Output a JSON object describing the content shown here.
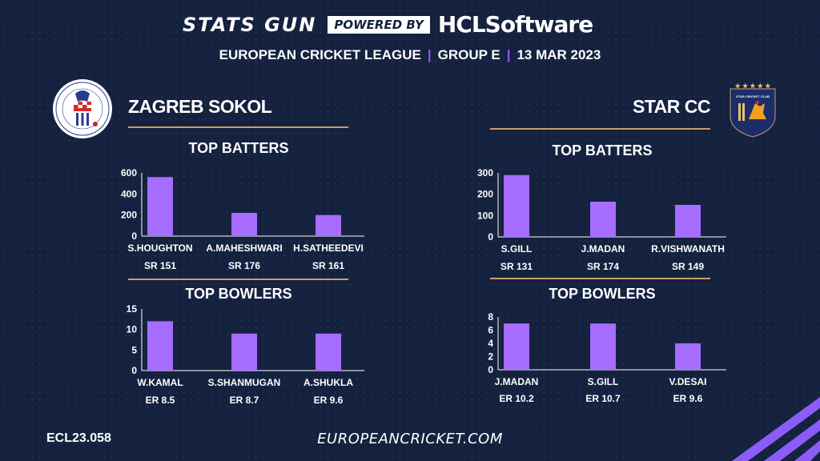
{
  "header": {
    "stats_gun": "STATS GUN",
    "powered_by": "POWERED BY",
    "sponsor_prefix": "HCL",
    "sponsor_suffix": "Software",
    "league": "EUROPEAN CRICKET LEAGUE",
    "group": "GROUP  E",
    "date": "13 MAR 2023"
  },
  "teams": {
    "left": {
      "name": "ZAGREB SOKOL"
    },
    "right": {
      "name": "STAR CC"
    }
  },
  "sections": {
    "batters": "TOP BATTERS",
    "bowlers": "TOP BOWLERS"
  },
  "footer": {
    "code": "ECL23.058",
    "url": "EUROPEANCRICKET.COM"
  },
  "colors": {
    "background": "#14213f",
    "bar": "#a66dff",
    "gold": "#c9a062",
    "accent": "#8b5cf6"
  },
  "chart_data": [
    {
      "id": "left-batters",
      "type": "bar",
      "title": "TOP BATTERS",
      "categories": [
        "S.HOUGHTON",
        "A.MAHESHWARI",
        "H.SATHEEDEVI"
      ],
      "values": [
        560,
        220,
        200
      ],
      "sublabels": [
        "SR 151",
        "SR 176",
        "SR 161"
      ],
      "yticks": [
        0,
        200,
        400,
        600
      ],
      "ylim": [
        0,
        600
      ],
      "grid": false
    },
    {
      "id": "left-bowlers",
      "type": "bar",
      "title": "TOP BOWLERS",
      "categories": [
        "W.KAMAL",
        "S.SHANMUGAN",
        "A.SHUKLA"
      ],
      "values": [
        12,
        9,
        9
      ],
      "sublabels": [
        "ER 8.5",
        "ER 8.7",
        "ER 9.6"
      ],
      "yticks": [
        0,
        5,
        10,
        15
      ],
      "ylim": [
        0,
        15
      ],
      "grid": false
    },
    {
      "id": "right-batters",
      "type": "bar",
      "title": "TOP BATTERS",
      "categories": [
        "S.GILL",
        "J.MADAN",
        "R.VISHWANATH"
      ],
      "values": [
        290,
        165,
        150
      ],
      "sublabels": [
        "SR 131",
        "SR 174",
        "SR 149"
      ],
      "yticks": [
        0,
        100,
        200,
        300
      ],
      "ylim": [
        0,
        300
      ],
      "grid": false
    },
    {
      "id": "right-bowlers",
      "type": "bar",
      "title": "TOP BOWLERS",
      "categories": [
        "J.MADAN",
        "S.GILL",
        "V.DESAI"
      ],
      "values": [
        7,
        7,
        4
      ],
      "sublabels": [
        "ER 10.2",
        "ER 10.7",
        "ER 9.6"
      ],
      "yticks": [
        0,
        2,
        4,
        6,
        8
      ],
      "ylim": [
        0,
        8
      ],
      "grid": false
    }
  ]
}
